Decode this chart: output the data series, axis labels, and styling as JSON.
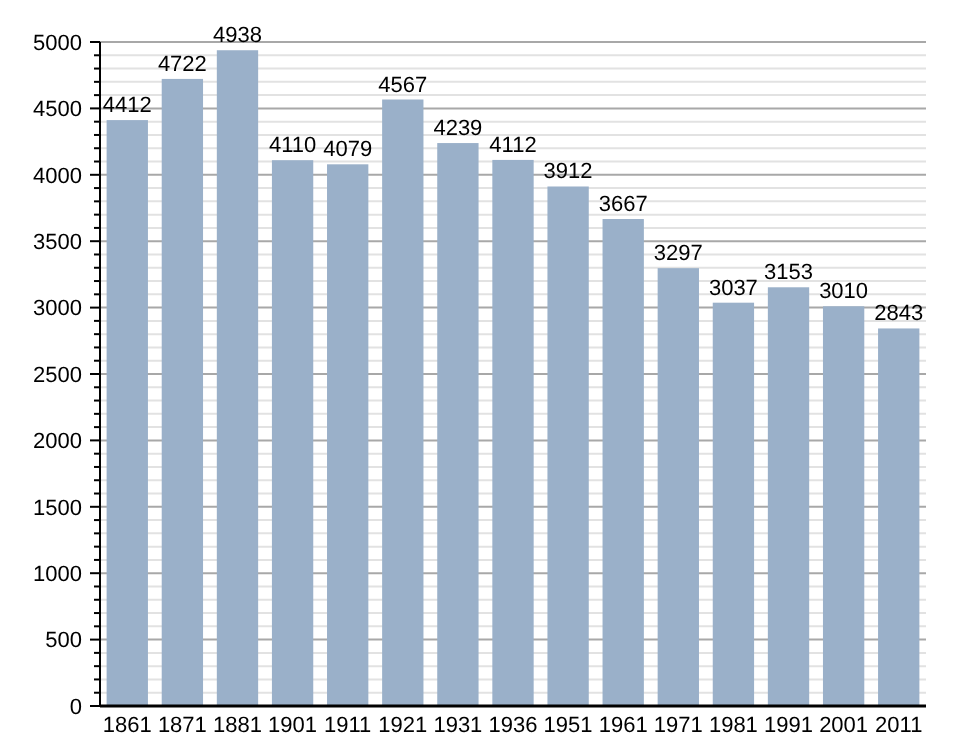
{
  "chart_data": {
    "type": "bar",
    "categories": [
      "1861",
      "1871",
      "1881",
      "1901",
      "1911",
      "1921",
      "1931",
      "1936",
      "1951",
      "1961",
      "1971",
      "1981",
      "1991",
      "2001",
      "2011"
    ],
    "values": [
      4412,
      4722,
      4938,
      4110,
      4079,
      4567,
      4239,
      4112,
      3912,
      3667,
      3297,
      3037,
      3153,
      3010,
      2843
    ],
    "color": "#9ab0c9",
    "ylim": [
      0,
      5000
    ],
    "yticks": [
      0,
      {
        "value": 100,
        "label": null
      },
      {
        "value": 200,
        "label": null
      },
      {
        "value": 300,
        "label": null
      },
      {
        "value": 400,
        "label": null
      },
      500,
      {
        "value": 600,
        "label": null
      },
      {
        "value": 700,
        "label": null
      },
      {
        "value": 800,
        "label": null
      },
      {
        "value": 900,
        "label": null
      },
      1000,
      {
        "value": 1100,
        "label": null
      },
      {
        "value": 1200,
        "label": null
      },
      {
        "value": 1300,
        "label": null
      },
      {
        "value": 1400,
        "label": null
      },
      1500,
      {
        "value": 1600,
        "label": null
      },
      {
        "value": 1700,
        "label": null
      },
      {
        "value": 1800,
        "label": null
      },
      {
        "value": 1900,
        "label": null
      },
      2000,
      {
        "value": 2100,
        "label": null
      },
      {
        "value": 2200,
        "label": null
      },
      {
        "value": 2300,
        "label": null
      },
      {
        "value": 2400,
        "label": null
      },
      2500,
      {
        "value": 2600,
        "label": null
      },
      {
        "value": 2700,
        "label": null
      },
      {
        "value": 2800,
        "label": null
      },
      {
        "value": 2900,
        "label": null
      },
      3000,
      {
        "value": 3100,
        "label": null
      },
      {
        "value": 3200,
        "label": null
      },
      {
        "value": 3300,
        "label": null
      },
      {
        "value": 3400,
        "label": null
      },
      3500,
      {
        "value": 3600,
        "label": null
      },
      {
        "value": 3700,
        "label": null
      },
      {
        "value": 3800,
        "label": null
      },
      {
        "value": 3900,
        "label": null
      },
      4000,
      {
        "value": 4100,
        "label": null
      },
      {
        "value": 4200,
        "label": null
      },
      {
        "value": 4300,
        "label": null
      },
      {
        "value": 4400,
        "label": null
      },
      4500,
      {
        "value": 4600,
        "label": null
      },
      {
        "value": 4700,
        "label": null
      },
      {
        "value": 4800,
        "label": null
      },
      {
        "value": 4900,
        "label": null
      },
      5000
    ],
    "grid": "y",
    "data_labels": true
  }
}
